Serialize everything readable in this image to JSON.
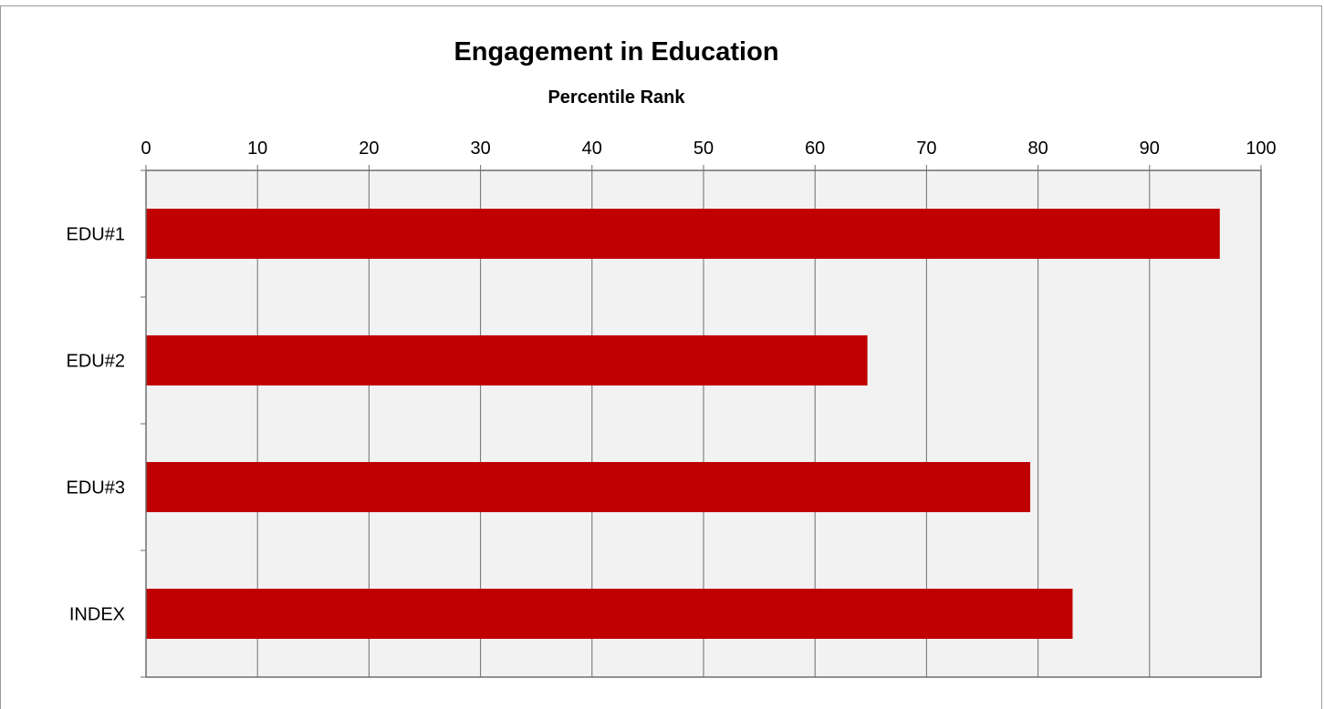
{
  "chart_data": {
    "type": "bar",
    "orientation": "horizontal",
    "title": "Engagement in Education",
    "subtitle": "Percentile Rank",
    "categories": [
      "EDU#1",
      "EDU#2",
      "EDU#3",
      "INDEX"
    ],
    "values": [
      96.3,
      64.7,
      79.3,
      83.1
    ],
    "xlim": [
      0,
      100
    ],
    "xticks": [
      0,
      10,
      20,
      30,
      40,
      50,
      60,
      70,
      80,
      90,
      100
    ],
    "tick_labels": [
      "0",
      "10",
      "20",
      "30",
      "40",
      "50",
      "60",
      "70",
      "80",
      "90",
      "100"
    ],
    "x_axis_position": "top",
    "grid": true,
    "legend": "none",
    "bar_color": "#c00000",
    "plot_background": "#f2f2f2"
  }
}
